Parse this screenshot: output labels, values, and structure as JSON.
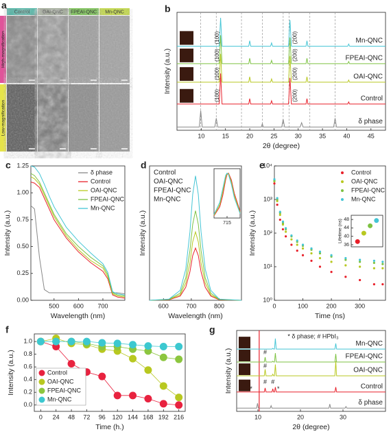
{
  "panel_a": {
    "label": "a",
    "columns": [
      "Control",
      "OAI-QNC",
      "FPEAI-QNC",
      "Mn-QNC"
    ],
    "column_colors": [
      "#4fb6a6",
      "#9fa995",
      "#7ec35a",
      "#c3d94c"
    ],
    "rows": [
      "High-magnification",
      "Low-magnification"
    ],
    "row_colors": [
      "#e0549a",
      "#e6e44a"
    ]
  },
  "chart_data": [
    {
      "type": "line",
      "label": "b",
      "xlabel": "2θ (degree)",
      "ylabel": "Intensity (a.u.)",
      "xlim": [
        5,
        48
      ],
      "xticks": [
        10,
        15,
        20,
        25,
        30,
        35,
        40,
        45
      ],
      "ylim": [
        0,
        5.4
      ],
      "legend": "inline",
      "reference_lines": [
        9.9,
        13.1,
        18.3,
        22.6,
        26.9,
        28.1,
        32.4,
        37.6
      ],
      "annotations": [
        "(100)",
        "(100)",
        "(100)",
        "(100)",
        "(200)",
        "(200)",
        "(200)",
        "(200)"
      ],
      "series": [
        {
          "name": "δ phase",
          "color": "#888888",
          "x": [
            5,
            9.6,
            9.9,
            10.2,
            12.8,
            13.1,
            13.4,
            22.4,
            22.6,
            22.8,
            26.6,
            26.9,
            27.2,
            30.4,
            30.7,
            31.0,
            37.3,
            37.6,
            37.9,
            48
          ],
          "values": [
            0.15,
            0.15,
            0.9,
            0.15,
            0.15,
            0.55,
            0.15,
            0.15,
            0.3,
            0.15,
            0.15,
            0.5,
            0.15,
            0.15,
            0.35,
            0.15,
            0.15,
            0.55,
            0.15,
            0.15
          ]
        },
        {
          "name": "Control",
          "color": "#e8202a",
          "x": [
            5,
            13.7,
            14.0,
            14.3,
            19.8,
            20.0,
            20.2,
            24.3,
            24.5,
            24.7,
            28.0,
            28.3,
            28.6,
            31.6,
            31.8,
            32.0,
            40.2,
            40.4,
            40.6,
            48
          ],
          "values": [
            1.2,
            1.2,
            2.6,
            1.2,
            1.2,
            1.45,
            1.2,
            1.2,
            1.35,
            1.2,
            1.2,
            2.4,
            1.2,
            1.2,
            1.45,
            1.2,
            1.2,
            1.3,
            1.2,
            1.2
          ]
        },
        {
          "name": "OAI-QNC",
          "color": "#b8c820",
          "x": [
            5,
            13.7,
            14.0,
            14.3,
            19.8,
            20.0,
            20.2,
            24.3,
            24.5,
            24.7,
            28.0,
            28.3,
            28.6,
            31.6,
            31.8,
            32.0,
            40.2,
            40.4,
            40.6,
            48
          ],
          "values": [
            2.2,
            2.2,
            3.5,
            2.2,
            2.2,
            2.45,
            2.2,
            2.2,
            2.35,
            2.2,
            2.2,
            3.4,
            2.2,
            2.2,
            2.45,
            2.2,
            2.2,
            2.3,
            2.2,
            2.2
          ]
        },
        {
          "name": "FPEAI-QNC",
          "color": "#7dc242",
          "x": [
            5,
            13.7,
            14.0,
            14.3,
            19.8,
            20.0,
            20.2,
            24.3,
            24.5,
            24.7,
            28.0,
            28.3,
            28.6,
            31.6,
            31.8,
            32.0,
            40.2,
            40.4,
            40.6,
            48
          ],
          "values": [
            3.05,
            3.05,
            4.35,
            3.05,
            3.05,
            3.3,
            3.05,
            3.05,
            3.2,
            3.05,
            3.05,
            4.25,
            3.05,
            3.05,
            3.3,
            3.05,
            3.05,
            3.15,
            3.05,
            3.05
          ]
        },
        {
          "name": "Mn-QNC",
          "color": "#45c5d5",
          "x": [
            5,
            13.7,
            14.0,
            14.3,
            19.8,
            20.0,
            20.2,
            24.3,
            24.5,
            24.7,
            28.0,
            28.3,
            28.6,
            31.6,
            31.8,
            32.0,
            40.2,
            40.4,
            40.6,
            48
          ],
          "values": [
            3.85,
            3.85,
            5.15,
            3.85,
            3.85,
            4.1,
            3.85,
            3.85,
            4.0,
            3.85,
            3.85,
            5.05,
            3.85,
            3.85,
            4.1,
            3.85,
            3.85,
            3.95,
            3.85,
            3.85
          ]
        }
      ]
    },
    {
      "type": "line",
      "label": "c",
      "xlabel": "Wavelength (nm)",
      "ylabel": "Intensity (a.u.)",
      "xlim": [
        405,
        790
      ],
      "xticks": [
        500,
        600,
        700
      ],
      "ylim": [
        0,
        1.25
      ],
      "yticks": [
        {
          "value": 0,
          "label": "0.00"
        },
        0.25,
        {
          "value": 0.5,
          "label": "0.50"
        },
        0.75,
        {
          "value": 1,
          "label": "1.00"
        },
        1.25
      ],
      "legend": "upper right",
      "x": [
        405,
        420,
        440,
        460,
        480,
        500,
        550,
        600,
        650,
        700,
        720,
        740,
        760,
        790
      ],
      "series": [
        {
          "name": "δ phase",
          "color": "#888888",
          "values": [
            0.88,
            0.85,
            0.4,
            0.1,
            0.07,
            0.07,
            0.07,
            0.07,
            0.07,
            0.07,
            0.07,
            0.07,
            0.07,
            0.06
          ]
        },
        {
          "name": "Control",
          "color": "#e8202a",
          "values": [
            1.1,
            1.09,
            1.05,
            0.95,
            0.85,
            0.75,
            0.58,
            0.45,
            0.35,
            0.27,
            0.2,
            0.05,
            0.03,
            0.02
          ]
        },
        {
          "name": "OAI-QNC",
          "color": "#b8c820",
          "values": [
            1.15,
            1.13,
            1.08,
            0.98,
            0.88,
            0.78,
            0.6,
            0.47,
            0.37,
            0.3,
            0.22,
            0.06,
            0.04,
            0.03
          ]
        },
        {
          "name": "FPEAI-QNC",
          "color": "#7dc242",
          "values": [
            1.18,
            1.16,
            1.1,
            1.0,
            0.9,
            0.8,
            0.62,
            0.5,
            0.4,
            0.32,
            0.24,
            0.07,
            0.05,
            0.04
          ]
        },
        {
          "name": "Mn-QNC",
          "color": "#45c5d5",
          "values": [
            1.25,
            1.24,
            1.18,
            1.08,
            0.97,
            0.87,
            0.68,
            0.55,
            0.44,
            0.34,
            0.26,
            0.08,
            0.06,
            0.05
          ]
        }
      ]
    },
    {
      "type": "line",
      "label": "d",
      "xlabel": "Wavelength (nm)",
      "ylabel": "Intensity (a.u.)",
      "xlim": [
        550,
        880
      ],
      "xticks": [
        600,
        700,
        800
      ],
      "ylim": [
        0,
        1.08
      ],
      "legend": "upper left",
      "legend_style": "text",
      "x": [
        550,
        620,
        660,
        680,
        695,
        705,
        715,
        725,
        735,
        750,
        770,
        800,
        880
      ],
      "series": [
        {
          "name": "Control",
          "color": "#e8202a",
          "values": [
            0,
            0.004,
            0.034,
            0.105,
            0.23,
            0.36,
            0.42,
            0.36,
            0.23,
            0.105,
            0.034,
            0.004,
            0
          ]
        },
        {
          "name": "OAI-QNC",
          "color": "#b8c820",
          "values": [
            0,
            0.006,
            0.044,
            0.14,
            0.3,
            0.47,
            0.55,
            0.47,
            0.3,
            0.14,
            0.044,
            0.006,
            0
          ]
        },
        {
          "name": "FPEAI-QNC",
          "color": "#7dc242",
          "values": [
            0,
            0.007,
            0.058,
            0.18,
            0.4,
            0.61,
            0.72,
            0.61,
            0.4,
            0.18,
            0.058,
            0.007,
            0
          ]
        },
        {
          "name": "Mn-QNC",
          "color": "#45c5d5",
          "values": [
            0,
            0.01,
            0.08,
            0.25,
            0.55,
            0.85,
            1,
            0.85,
            0.55,
            0.25,
            0.08,
            0.01,
            0
          ]
        }
      ]
    },
    {
      "type": "line",
      "xlim": [
        670,
        760
      ],
      "xticks": [
        715
      ],
      "ylim": [
        0,
        1.1
      ],
      "x": [
        670,
        690,
        700,
        710,
        715,
        720,
        730,
        740,
        760
      ],
      "series": [
        {
          "color": "#e8202a",
          "values": [
            0.05,
            0.25,
            0.5,
            0.85,
            0.97,
            1,
            0.85,
            0.55,
            0.15
          ]
        },
        {
          "color": "#b8c820",
          "values": [
            0.06,
            0.3,
            0.58,
            0.9,
            0.99,
            0.99,
            0.8,
            0.5,
            0.12
          ]
        },
        {
          "color": "#45c5d5",
          "values": [
            0.08,
            0.35,
            0.65,
            0.95,
            1,
            0.97,
            0.75,
            0.45,
            0.1
          ]
        }
      ]
    },
    {
      "type": "scatter",
      "label": "e",
      "xlabel": "Time (ns)",
      "ylabel": "Intensity (a.u.)",
      "log": true,
      "xlim": [
        0,
        390
      ],
      "xticks": [
        0,
        100,
        200,
        300
      ],
      "ylim": [
        1,
        10000
      ],
      "yticks": [
        {
          "value": 1,
          "label": "10⁰"
        },
        {
          "value": 10,
          "label": "10¹"
        },
        {
          "value": 100,
          "label": "10²"
        },
        {
          "value": 1000,
          "label": "10³"
        },
        {
          "value": 10000,
          "label": "10⁴"
        }
      ],
      "legend": "upper right",
      "x": [
        0,
        10,
        20,
        30,
        40,
        60,
        80,
        100,
        130,
        160,
        200,
        250,
        300,
        350,
        380
      ],
      "series": [
        {
          "name": "Control",
          "color": "#e8202a",
          "values": [
            3000,
            700,
            250,
            130,
            80,
            45,
            30,
            22,
            15,
            10,
            7,
            5,
            4,
            3,
            3
          ]
        },
        {
          "name": "OAI-QNC",
          "color": "#b8c820",
          "values": [
            3500,
            900,
            350,
            180,
            110,
            65,
            45,
            35,
            25,
            18,
            14,
            11,
            10,
            9,
            9
          ]
        },
        {
          "name": "FPEAI-QNC",
          "color": "#7dc242",
          "values": [
            3600,
            1000,
            400,
            200,
            130,
            80,
            55,
            42,
            32,
            25,
            20,
            16,
            14,
            13,
            12
          ]
        },
        {
          "name": "Mn-QNC",
          "color": "#45c5d5",
          "values": [
            4000,
            1100,
            430,
            220,
            140,
            85,
            60,
            45,
            35,
            28,
            22,
            18,
            16,
            15,
            14
          ]
        }
      ]
    },
    {
      "type": "scatter",
      "ylabel": "Lifetime (ns)",
      "ylim": [
        35,
        50
      ],
      "yticks": [
        36,
        40,
        44,
        48
      ],
      "values": [
        37.5,
        41.5,
        45,
        47.5
      ],
      "colors": [
        "#e8202a",
        "#b8c820",
        "#7dc242",
        "#45c5d5"
      ]
    },
    {
      "type": "line",
      "markers": true,
      "label": "f",
      "xlabel": "Time (h.)",
      "ylabel": "Intensity (a.u.)",
      "xlim": [
        -10,
        226
      ],
      "xticks": [
        0,
        24,
        48,
        72,
        96,
        120,
        144,
        168,
        192,
        216
      ],
      "ylim": [
        -0.1,
        1.12
      ],
      "yticks": [
        {
          "value": 0,
          "label": "0.0"
        },
        0.2,
        0.4,
        0.6,
        0.8,
        {
          "value": 1,
          "label": "1.0"
        }
      ],
      "legend": "lower left",
      "legend_box": true,
      "x": [
        0,
        24,
        48,
        72,
        96,
        120,
        144,
        168,
        192,
        216
      ],
      "series": [
        {
          "name": "Control",
          "color": "#e8223f",
          "values": [
            1,
            0.92,
            0.65,
            0.52,
            0.45,
            0.15,
            0.15,
            0.1,
            0.02,
            0
          ]
        },
        {
          "name": "OAI-QNC",
          "color": "#b8c820",
          "values": [
            1,
            1.05,
            0.97,
            0.95,
            0.88,
            0.85,
            0.73,
            0.55,
            0.3,
            0.12
          ]
        },
        {
          "name": "FPEAI-QNC",
          "color": "#8cc63f",
          "values": [
            1,
            1,
            1,
            0.97,
            0.92,
            0.92,
            0.88,
            0.85,
            0.75,
            0.72
          ]
        },
        {
          "name": "Mn-QNC",
          "color": "#3cc8d0",
          "values": [
            1,
            1,
            1,
            1,
            0.98,
            0.97,
            0.95,
            0.93,
            0.92,
            0.92
          ]
        }
      ]
    },
    {
      "type": "line",
      "label": "g",
      "xlabel": "2θ (degree)",
      "ylabel": "Intensity (a.u.)",
      "xlim": [
        5,
        40
      ],
      "xticks": [
        10,
        20,
        30
      ],
      "ylim": [
        0,
        5
      ],
      "legend": "inline",
      "reference_lines": [
        10.3
      ],
      "reference_color": "#e8202a",
      "annotations": [
        "* δ phase; # HPbI₃",
        "#",
        "#",
        "#",
        "#",
        "*",
        "*"
      ],
      "series": [
        {
          "name": "δ phase",
          "color": "#888888",
          "x": [
            5,
            9.7,
            9.9,
            10.1,
            12.9,
            13.1,
            13.3,
            26.7,
            26.9,
            27.1,
            30.5,
            30.7,
            30.9,
            40
          ],
          "values": [
            0.2,
            0.2,
            0.5,
            0.2,
            0.2,
            0.35,
            0.2,
            0.2,
            0.45,
            0.2,
            0.2,
            0.3,
            0.2,
            0.2
          ]
        },
        {
          "name": "Control",
          "color": "#e8202a",
          "x": [
            5,
            11.5,
            11.7,
            11.9,
            13.3,
            13.5,
            13.7,
            13.9,
            14.1,
            14.3,
            28.1,
            28.3,
            28.5,
            40
          ],
          "values": [
            1.2,
            1.2,
            1.45,
            1.2,
            1.2,
            1.4,
            1.2,
            1.2,
            1.5,
            1.2,
            1.2,
            1.5,
            1.2,
            1.2
          ]
        },
        {
          "name": "OAI-QNC",
          "color": "#b8c820",
          "x": [
            5,
            11.5,
            11.7,
            11.9,
            13.3,
            13.5,
            13.7,
            13.9,
            14.1,
            14.3,
            28.1,
            28.3,
            28.5,
            40
          ],
          "values": [
            2.2,
            2.2,
            2.6,
            2.2,
            2.2,
            2.3,
            2.2,
            2.2,
            2.9,
            2.2,
            2.2,
            3.1,
            2.2,
            2.2
          ]
        },
        {
          "name": "FPEAI-QNC",
          "color": "#7dc242",
          "x": [
            5,
            11.5,
            11.7,
            11.9,
            13.3,
            13.5,
            13.7,
            13.9,
            14.1,
            14.3,
            28.1,
            28.3,
            28.5,
            40
          ],
          "values": [
            3.05,
            3.05,
            3.35,
            3.05,
            3.05,
            3.1,
            3.05,
            3.05,
            3.6,
            3.05,
            3.05,
            3.55,
            3.05,
            3.05
          ]
        },
        {
          "name": "Mn-QNC",
          "color": "#45c5d5",
          "x": [
            5,
            11.5,
            11.7,
            11.9,
            13.3,
            13.5,
            13.7,
            13.9,
            14.1,
            14.3,
            28.1,
            28.3,
            28.5,
            40
          ],
          "values": [
            3.85,
            3.85,
            3.85,
            3.85,
            3.85,
            3.9,
            3.85,
            3.85,
            4.5,
            3.85,
            3.85,
            4.2,
            3.85,
            3.85
          ]
        }
      ]
    }
  ]
}
